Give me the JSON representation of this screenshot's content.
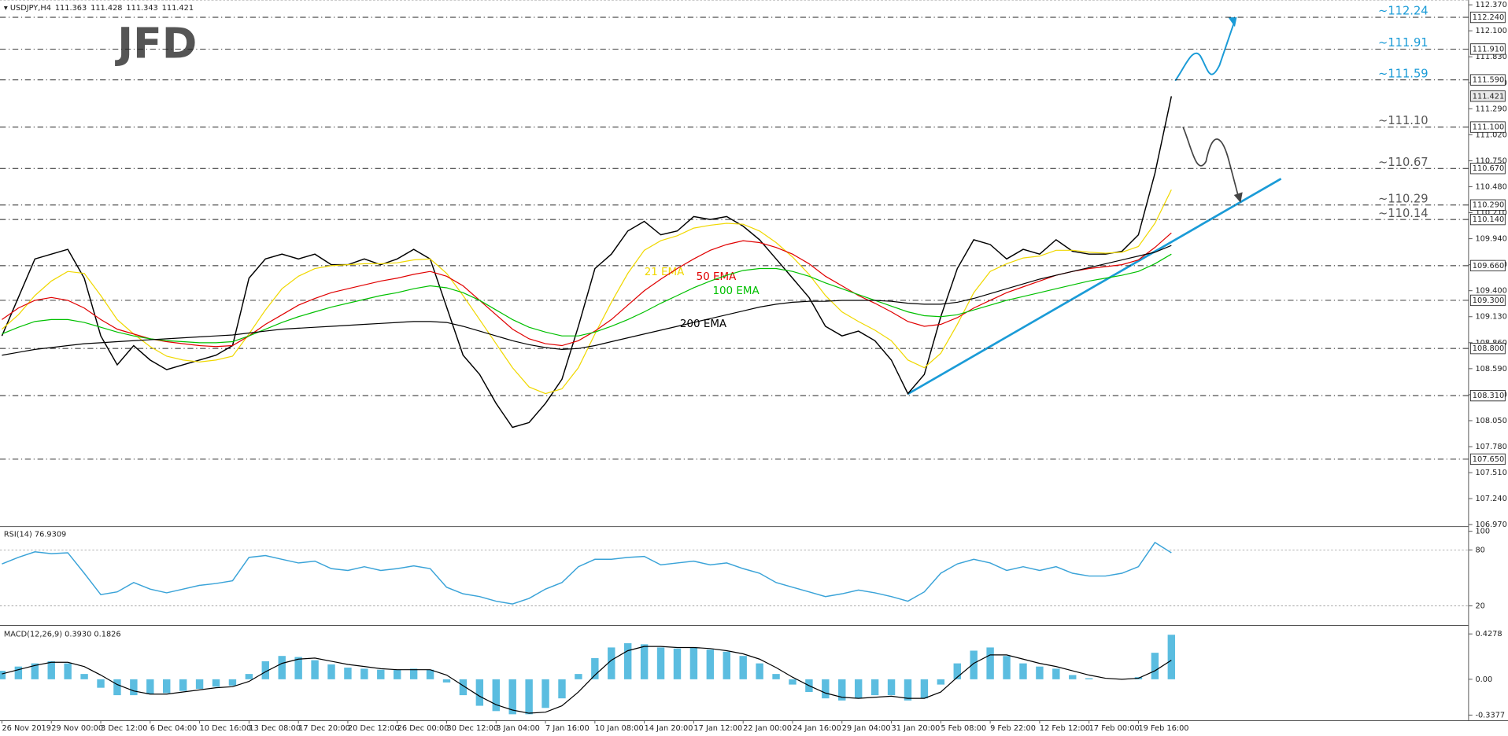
{
  "chart_data": [
    {
      "type": "line",
      "title": "USDJPY,H4",
      "header_values": [
        111.363,
        111.428,
        111.343,
        111.421
      ],
      "logo": "JFD",
      "last_price": 111.421,
      "categories": [
        "26 Nov 2019",
        null,
        null,
        "29 Nov 00:00",
        null,
        null,
        "3 Dec 12:00",
        null,
        null,
        "6 Dec 04:00",
        null,
        null,
        "10 Dec 16:00",
        null,
        null,
        "13 Dec 08:00",
        null,
        null,
        "17 Dec 20:00",
        null,
        null,
        "20 Dec 12:00",
        null,
        null,
        "26 Dec 00:00",
        null,
        null,
        "30 Dec 12:00",
        null,
        null,
        "3 Jan 04:00",
        null,
        null,
        "7 Jan 16:00",
        null,
        null,
        "10 Jan 08:00",
        null,
        null,
        "14 Jan 20:00",
        null,
        null,
        "17 Jan 12:00",
        null,
        null,
        "22 Jan 00:00",
        null,
        null,
        "24 Jan 16:00",
        null,
        null,
        "29 Jan 04:00",
        null,
        null,
        "31 Jan 20:00",
        null,
        null,
        "5 Feb 08:00",
        null,
        null,
        "9 Feb 22:00",
        null,
        null,
        "12 Feb 12:00",
        null,
        null,
        "17 Feb 00:00",
        null,
        null,
        "19 Feb 16:00",
        null,
        null
      ],
      "ylim": [
        106.95,
        112.42
      ],
      "yticks": [
        {
          "value": 112.37,
          "label": "112.370"
        },
        {
          "value": 112.1,
          "label": "112.100"
        },
        {
          "value": 111.83,
          "label": "111.830"
        },
        {
          "value": 111.56,
          "label": "111.560"
        },
        {
          "value": 111.29,
          "label": "111.290"
        },
        {
          "value": 111.02,
          "label": "111.020"
        },
        {
          "value": 110.75,
          "label": "110.750"
        },
        {
          "value": 110.48,
          "label": "110.480"
        },
        {
          "value": 110.21,
          "label": "110.210"
        },
        {
          "value": 109.94,
          "label": "109.940"
        },
        {
          "value": 109.67,
          "label": "109.670"
        },
        {
          "value": 109.4,
          "label": "109.400"
        },
        {
          "value": 109.13,
          "label": "109.130"
        },
        {
          "value": 108.86,
          "label": "108.860"
        },
        {
          "value": 108.59,
          "label": "108.590"
        },
        {
          "value": 108.32,
          "label": "108.320"
        },
        {
          "value": 108.05,
          "label": "108.050"
        },
        {
          "value": 107.78,
          "label": "107.780"
        },
        {
          "value": 107.51,
          "label": "107.510"
        },
        {
          "value": 107.24,
          "label": "107.240"
        },
        {
          "value": 106.97,
          "label": "106.970"
        }
      ],
      "levels": [
        {
          "value": 112.24,
          "label": "112.240"
        },
        {
          "value": 111.91,
          "label": "111.910"
        },
        {
          "value": 111.59,
          "label": "111.590"
        },
        {
          "value": 111.1,
          "label": "111.100"
        },
        {
          "value": 110.67,
          "label": "110.670"
        },
        {
          "value": 110.29,
          "label": "110.290"
        },
        {
          "value": 110.14,
          "label": "110.140"
        },
        {
          "value": 109.66,
          "label": "109.660"
        },
        {
          "value": 109.3,
          "label": "109.300"
        },
        {
          "value": 108.8,
          "label": "108.800"
        },
        {
          "value": 108.31,
          "label": "108.310"
        },
        {
          "value": 107.65,
          "label": "107.650"
        }
      ],
      "level_annotations": [
        {
          "text": "~112.24",
          "color": "#1a9bd7"
        },
        {
          "text": "~111.91",
          "color": "#1a9bd7"
        },
        {
          "text": "~111.59",
          "color": "#1a9bd7"
        },
        {
          "text": "~111.10",
          "color": "#555555"
        },
        {
          "text": "~110.67",
          "color": "#555555"
        },
        {
          "text": "~110.29",
          "color": "#555555"
        },
        {
          "text": "~110.14",
          "color": "#555555"
        }
      ],
      "series": [
        {
          "color": "#000000",
          "values": [
            108.93,
            109.33,
            109.73,
            109.78,
            109.83,
            109.53,
            108.93,
            108.63,
            108.83,
            108.68,
            108.58,
            108.63,
            108.68,
            108.73,
            108.83,
            109.53,
            109.73,
            109.78,
            109.73,
            109.78,
            109.67,
            109.67,
            109.73,
            109.67,
            109.73,
            109.83,
            109.73,
            109.23,
            108.73,
            108.53,
            108.23,
            107.98,
            108.03,
            108.23,
            108.48,
            109.03,
            109.63,
            109.78,
            110.02,
            110.12,
            109.98,
            110.02,
            110.17,
            110.14,
            110.17,
            110.07,
            109.93,
            109.73,
            109.53,
            109.33,
            109.03,
            108.93,
            108.98,
            108.88,
            108.68,
            108.33,
            108.53,
            109.13,
            109.63,
            109.93,
            109.88,
            109.73,
            109.83,
            109.78,
            109.93,
            109.81,
            109.78,
            109.78,
            109.81,
            109.98,
            110.62,
            111.42
          ]
        },
        {
          "name": "21 EMA",
          "color": "#f0d800",
          "values": [
            109.0,
            109.15,
            109.35,
            109.5,
            109.6,
            109.58,
            109.35,
            109.1,
            108.95,
            108.82,
            108.72,
            108.68,
            108.66,
            108.68,
            108.72,
            108.95,
            109.2,
            109.42,
            109.55,
            109.63,
            109.66,
            109.67,
            109.68,
            109.68,
            109.69,
            109.72,
            109.73,
            109.58,
            109.35,
            109.1,
            108.85,
            108.6,
            108.4,
            108.33,
            108.38,
            108.6,
            108.95,
            109.28,
            109.58,
            109.82,
            109.92,
            109.97,
            110.05,
            110.08,
            110.1,
            110.09,
            110.02,
            109.9,
            109.75,
            109.57,
            109.35,
            109.18,
            109.08,
            108.99,
            108.88,
            108.68,
            108.6,
            108.75,
            109.05,
            109.38,
            109.6,
            109.68,
            109.74,
            109.76,
            109.82,
            109.82,
            109.8,
            109.79,
            109.8,
            109.86,
            110.1,
            110.45
          ]
        },
        {
          "name": "50 EMA",
          "color": "#e00000",
          "values": [
            109.1,
            109.22,
            109.3,
            109.33,
            109.3,
            109.22,
            109.1,
            109.0,
            108.95,
            108.9,
            108.87,
            108.85,
            108.83,
            108.82,
            108.83,
            108.93,
            109.05,
            109.15,
            109.25,
            109.32,
            109.38,
            109.42,
            109.46,
            109.5,
            109.53,
            109.57,
            109.6,
            109.55,
            109.45,
            109.3,
            109.15,
            109.0,
            108.9,
            108.85,
            108.83,
            108.88,
            108.98,
            109.1,
            109.25,
            109.4,
            109.52,
            109.63,
            109.73,
            109.82,
            109.88,
            109.92,
            109.9,
            109.85,
            109.78,
            109.68,
            109.55,
            109.45,
            109.35,
            109.27,
            109.18,
            109.08,
            109.03,
            109.05,
            109.12,
            109.22,
            109.3,
            109.38,
            109.44,
            109.5,
            109.56,
            109.6,
            109.63,
            109.65,
            109.67,
            109.72,
            109.85,
            110.0
          ]
        },
        {
          "name": "100 EMA",
          "color": "#00c000",
          "values": [
            108.95,
            109.02,
            109.08,
            109.1,
            109.1,
            109.07,
            109.02,
            108.97,
            108.93,
            108.9,
            108.88,
            108.87,
            108.86,
            108.86,
            108.87,
            108.93,
            109.0,
            109.07,
            109.13,
            109.18,
            109.23,
            109.27,
            109.31,
            109.35,
            109.38,
            109.42,
            109.45,
            109.43,
            109.38,
            109.3,
            109.2,
            109.1,
            109.02,
            108.97,
            108.93,
            108.93,
            108.97,
            109.03,
            109.1,
            109.18,
            109.27,
            109.35,
            109.43,
            109.5,
            109.56,
            109.61,
            109.63,
            109.63,
            109.6,
            109.55,
            109.48,
            109.42,
            109.36,
            109.3,
            109.24,
            109.18,
            109.14,
            109.13,
            109.15,
            109.2,
            109.25,
            109.3,
            109.34,
            109.38,
            109.42,
            109.46,
            109.5,
            109.53,
            109.56,
            109.6,
            109.68,
            109.78
          ]
        },
        {
          "name": "200 EMA",
          "color": "#000000",
          "values": [
            108.73,
            108.76,
            108.79,
            108.81,
            108.83,
            108.85,
            108.86,
            108.87,
            108.88,
            108.89,
            108.9,
            108.91,
            108.92,
            108.93,
            108.94,
            108.96,
            108.98,
            109.0,
            109.01,
            109.02,
            109.03,
            109.04,
            109.05,
            109.06,
            109.07,
            109.08,
            109.08,
            109.07,
            109.03,
            108.98,
            108.93,
            108.88,
            108.84,
            108.81,
            108.79,
            108.8,
            108.83,
            108.87,
            108.91,
            108.95,
            108.99,
            109.03,
            109.07,
            109.11,
            109.15,
            109.19,
            109.23,
            109.26,
            109.28,
            109.29,
            109.29,
            109.3,
            109.3,
            109.3,
            109.29,
            109.27,
            109.26,
            109.26,
            109.28,
            109.32,
            109.37,
            109.42,
            109.47,
            109.52,
            109.56,
            109.6,
            109.64,
            109.68,
            109.72,
            109.76,
            109.8,
            109.87
          ]
        }
      ]
    },
    {
      "type": "line",
      "title": "RSI(14) 76.9309",
      "ylim": [
        0,
        102
      ],
      "yticks": [
        100,
        80,
        20
      ],
      "levels": [
        80,
        20
      ],
      "series": [
        {
          "color": "#3aa3d8",
          "values": [
            65,
            72,
            78,
            76,
            77,
            55,
            32,
            35,
            45,
            38,
            34,
            38,
            42,
            44,
            47,
            72,
            74,
            70,
            66,
            68,
            60,
            58,
            62,
            58,
            60,
            63,
            60,
            40,
            33,
            30,
            25,
            22,
            28,
            38,
            45,
            62,
            70,
            70,
            72,
            73,
            64,
            66,
            68,
            64,
            66,
            60,
            55,
            45,
            40,
            35,
            30,
            33,
            37,
            34,
            30,
            25,
            35,
            55,
            65,
            70,
            66,
            58,
            62,
            58,
            62,
            55,
            52,
            52,
            55,
            62,
            88,
            77
          ]
        }
      ]
    },
    {
      "type": "macd",
      "title": "MACD(12,26,9) 0.3930 0.1826",
      "ylim": [
        -0.39,
        0.48
      ],
      "yticks": [
        0.4278,
        {
          "value": 0,
          "label": "0.00"
        },
        -0.3377
      ],
      "histogram": {
        "color": "#5bbde0",
        "values": [
          0.08,
          0.12,
          0.15,
          0.17,
          0.15,
          0.05,
          -0.08,
          -0.15,
          -0.15,
          -0.14,
          -0.13,
          -0.11,
          -0.09,
          -0.07,
          -0.06,
          0.05,
          0.17,
          0.22,
          0.21,
          0.18,
          0.14,
          0.11,
          0.1,
          0.09,
          0.09,
          0.1,
          0.09,
          -0.03,
          -0.15,
          -0.25,
          -0.3,
          -0.33,
          -0.33,
          -0.27,
          -0.18,
          0.05,
          0.2,
          0.3,
          0.34,
          0.33,
          0.3,
          0.29,
          0.3,
          0.28,
          0.26,
          0.22,
          0.15,
          0.05,
          -0.05,
          -0.12,
          -0.18,
          -0.2,
          -0.18,
          -0.15,
          -0.15,
          -0.2,
          -0.18,
          -0.05,
          0.15,
          0.27,
          0.3,
          0.22,
          0.15,
          0.12,
          0.1,
          0.04,
          0.01,
          0.0,
          0.0,
          0.02,
          0.25,
          0.42
        ]
      },
      "signal": {
        "color": "#000000",
        "values": [
          0.05,
          0.09,
          0.13,
          0.16,
          0.16,
          0.12,
          0.04,
          -0.05,
          -0.11,
          -0.14,
          -0.14,
          -0.12,
          -0.1,
          -0.08,
          -0.07,
          -0.02,
          0.07,
          0.15,
          0.19,
          0.2,
          0.17,
          0.14,
          0.12,
          0.1,
          0.09,
          0.09,
          0.09,
          0.04,
          -0.06,
          -0.16,
          -0.24,
          -0.29,
          -0.32,
          -0.31,
          -0.25,
          -0.12,
          0.04,
          0.18,
          0.27,
          0.31,
          0.31,
          0.3,
          0.3,
          0.29,
          0.27,
          0.24,
          0.19,
          0.11,
          0.02,
          -0.06,
          -0.13,
          -0.17,
          -0.18,
          -0.17,
          -0.16,
          -0.18,
          -0.18,
          -0.12,
          0.02,
          0.15,
          0.23,
          0.23,
          0.19,
          0.15,
          0.12,
          0.08,
          0.04,
          0.01,
          0.0,
          0.01,
          0.08,
          0.18
        ]
      }
    }
  ]
}
